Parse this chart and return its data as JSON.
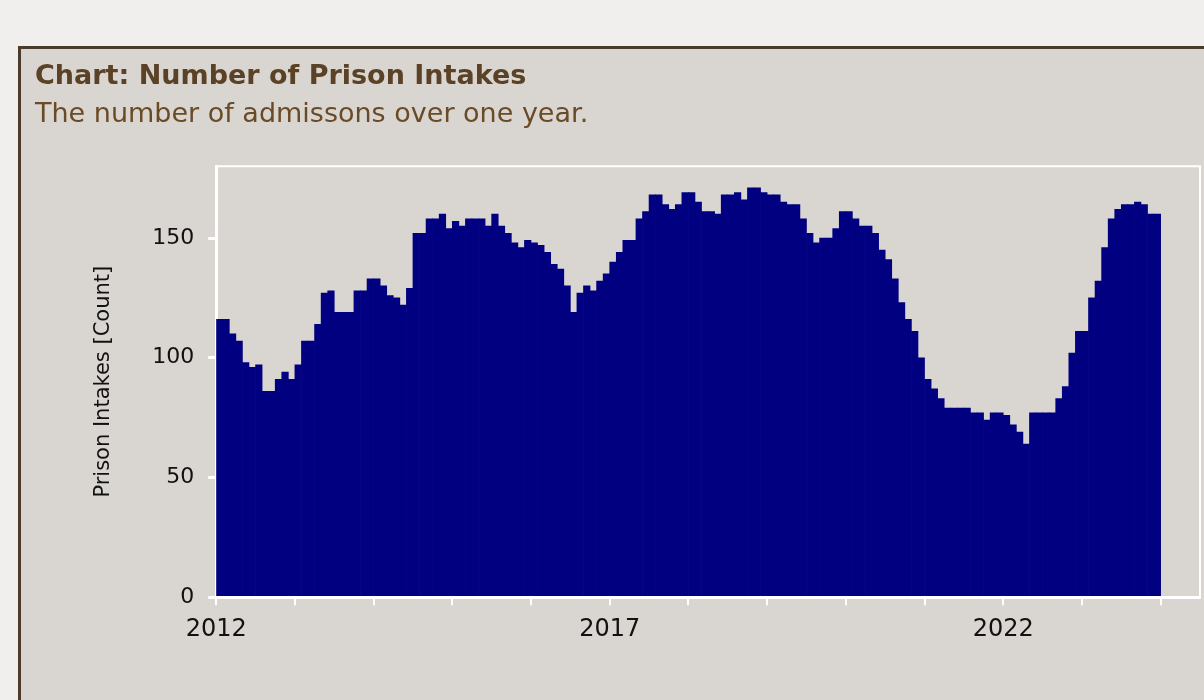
{
  "chart_data": {
    "type": "bar",
    "title": "Chart: Number of Prison Intakes",
    "subtitle": "The number of admissons over one year.",
    "ylabel": "Prison Intakes [Count]",
    "x": [
      "2012-01",
      "2012-02",
      "2012-03",
      "2012-04",
      "2012-05",
      "2012-06",
      "2012-07",
      "2012-08",
      "2012-09",
      "2012-10",
      "2012-11",
      "2012-12",
      "2013-01",
      "2013-02",
      "2013-03",
      "2013-04",
      "2013-05",
      "2013-06",
      "2013-07",
      "2013-08",
      "2013-09",
      "2013-10",
      "2013-11",
      "2013-12",
      "2014-01",
      "2014-02",
      "2014-03",
      "2014-04",
      "2014-05",
      "2014-06",
      "2014-07",
      "2014-08",
      "2014-09",
      "2014-10",
      "2014-11",
      "2014-12",
      "2015-01",
      "2015-02",
      "2015-03",
      "2015-04",
      "2015-05",
      "2015-06",
      "2015-07",
      "2015-08",
      "2015-09",
      "2015-10",
      "2015-11",
      "2015-12",
      "2016-01",
      "2016-02",
      "2016-03",
      "2016-04",
      "2016-05",
      "2016-06",
      "2016-07",
      "2016-08",
      "2016-09",
      "2016-10",
      "2016-11",
      "2016-12",
      "2017-01",
      "2017-02",
      "2017-03",
      "2017-04",
      "2017-05",
      "2017-06",
      "2017-07",
      "2017-08",
      "2017-09",
      "2017-10",
      "2017-11",
      "2017-12",
      "2018-01",
      "2018-02",
      "2018-03",
      "2018-04",
      "2018-05",
      "2018-06",
      "2018-07",
      "2018-08",
      "2018-09",
      "2018-10",
      "2018-11",
      "2018-12",
      "2019-01",
      "2019-02",
      "2019-03",
      "2019-04",
      "2019-05",
      "2019-06",
      "2019-07",
      "2019-08",
      "2019-09",
      "2019-10",
      "2019-11",
      "2019-12",
      "2020-01",
      "2020-02",
      "2020-03",
      "2020-04",
      "2020-05",
      "2020-06",
      "2020-07",
      "2020-08",
      "2020-09",
      "2020-10",
      "2020-11",
      "2020-12",
      "2021-01",
      "2021-02",
      "2021-03",
      "2021-04",
      "2021-05",
      "2021-06",
      "2021-07",
      "2021-08",
      "2021-09",
      "2021-10",
      "2021-11",
      "2021-12",
      "2022-01",
      "2022-02",
      "2022-03",
      "2022-04",
      "2022-05",
      "2022-06",
      "2022-07",
      "2022-08",
      "2022-09",
      "2022-10",
      "2022-11",
      "2022-12",
      "2023-01",
      "2023-02",
      "2023-03",
      "2023-04",
      "2023-05",
      "2023-06",
      "2023-07",
      "2023-08",
      "2023-09",
      "2023-10",
      "2023-11",
      "2023-12"
    ],
    "values": [
      116,
      116,
      110,
      107,
      98,
      96,
      97,
      86,
      86,
      91,
      94,
      91,
      97,
      107,
      107,
      114,
      127,
      128,
      119,
      119,
      119,
      128,
      128,
      133,
      133,
      130,
      126,
      125,
      122,
      129,
      152,
      152,
      158,
      158,
      160,
      154,
      157,
      155,
      158,
      158,
      158,
      155,
      160,
      155,
      152,
      148,
      146,
      149,
      148,
      147,
      144,
      139,
      137,
      130,
      119,
      127,
      130,
      128,
      132,
      135,
      140,
      144,
      149,
      149,
      158,
      161,
      168,
      168,
      164,
      162,
      164,
      169,
      169,
      165,
      161,
      161,
      160,
      168,
      168,
      169,
      166,
      171,
      171,
      169,
      168,
      168,
      165,
      164,
      164,
      158,
      152,
      148,
      150,
      150,
      154,
      161,
      161,
      158,
      155,
      155,
      152,
      145,
      141,
      133,
      123,
      116,
      111,
      100,
      91,
      87,
      83,
      79,
      79,
      79,
      79,
      77,
      77,
      74,
      77,
      77,
      76,
      72,
      69,
      64,
      77,
      77,
      77,
      77,
      83,
      88,
      102,
      111,
      111,
      125,
      132,
      146,
      158,
      162,
      164,
      164,
      165,
      164,
      160,
      160
    ],
    "color": "#000080",
    "xlim": [
      "2012-01",
      "2024-07"
    ],
    "xticks": [
      "2012",
      {
        "value": "2013",
        "label": null
      },
      {
        "value": "2014",
        "label": null
      },
      {
        "value": "2015",
        "label": null
      },
      {
        "value": "2016",
        "label": null
      },
      "2017",
      {
        "value": "2018",
        "label": null
      },
      {
        "value": "2019",
        "label": null
      },
      {
        "value": "2020",
        "label": null
      },
      {
        "value": "2021",
        "label": null
      },
      "2022",
      {
        "value": "2023",
        "label": null
      },
      {
        "value": "2024",
        "label": null
      }
    ],
    "ylim": [
      0,
      180
    ],
    "yticks": [
      0,
      50,
      100,
      150
    ],
    "grid": false,
    "legend": false
  }
}
